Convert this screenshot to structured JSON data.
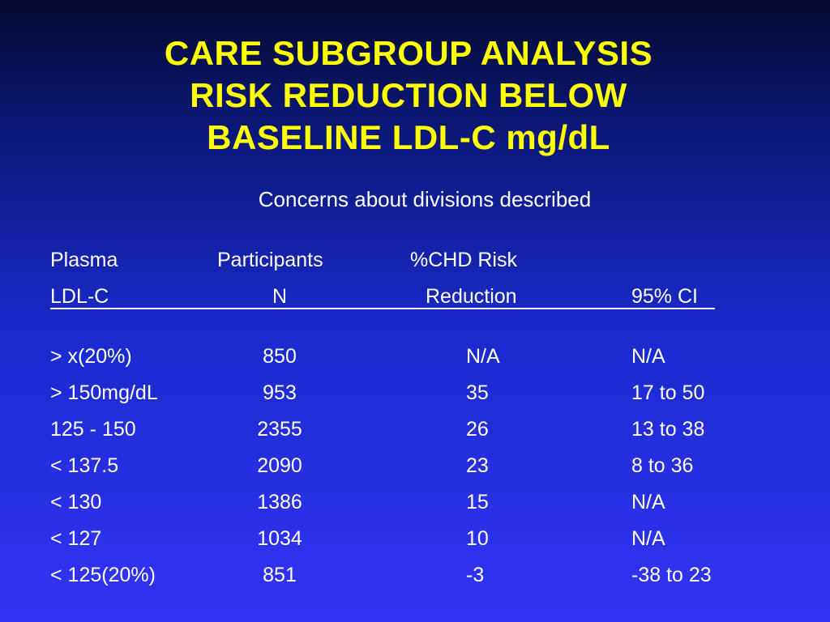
{
  "title_lines": [
    "CARE SUBGROUP ANALYSIS",
    "RISK REDUCTION BELOW",
    "BASELINE LDL-C mg/dL"
  ],
  "subtitle": "Concerns about divisions described",
  "table": {
    "header_row1": {
      "plasma": "Plasma",
      "participants": "Participants",
      "chd_risk": "%CHD Risk"
    },
    "header_row2": {
      "ldl_c": "LDL-C",
      "n": "N",
      "reduction": "Reduction",
      "ci": "95% CI"
    },
    "rows": [
      {
        "plasma": "> x(20%)",
        "n": "850",
        "reduction": "N/A",
        "ci": "N/A"
      },
      {
        "plasma": "> 150mg/dL",
        "n": "953",
        "reduction": "35",
        "ci": "17 to 50"
      },
      {
        "plasma": "125 - 150",
        "n": "2355",
        "reduction": "26",
        "ci": "13 to 38"
      },
      {
        "plasma": "< 137.5",
        "n": "2090",
        "reduction": "23",
        "ci": "8 to 36"
      },
      {
        "plasma": "< 130",
        "n": "1386",
        "reduction": "15",
        "ci": "N/A"
      },
      {
        "plasma": "< 127",
        "n": "1034",
        "reduction": "10",
        "ci": "N/A"
      },
      {
        "plasma": "< 125(20%)",
        "n": "851",
        "reduction": "-3",
        "ci": "-38 to 23"
      }
    ]
  },
  "colors": {
    "title": "#ffff00",
    "text": "#ffffff",
    "background_top": "#050a2e",
    "background_bottom": "#3333f5"
  }
}
